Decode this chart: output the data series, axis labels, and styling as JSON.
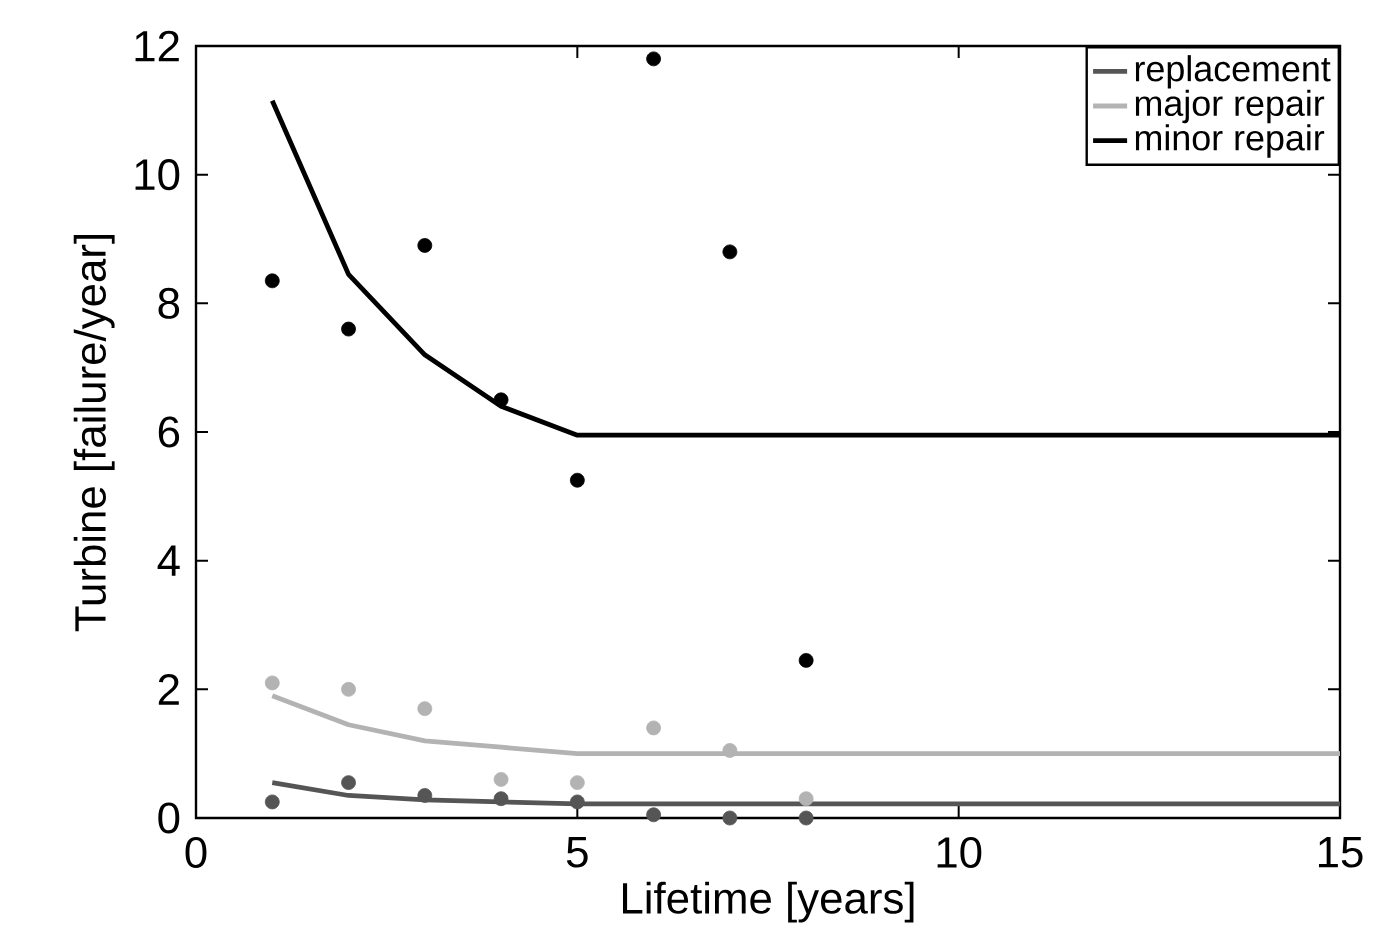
{
  "chart_data": {
    "type": "line",
    "xlabel": "Lifetime [years]",
    "ylabel": "Turbine [failure/year]",
    "xlim": [
      0,
      15
    ],
    "ylim": [
      0,
      12
    ],
    "xticks": [
      0,
      5,
      10,
      15
    ],
    "yticks": [
      0,
      2,
      4,
      6,
      8,
      10,
      12
    ],
    "grid": false,
    "legend": "top right",
    "series": [
      {
        "name": "replacement",
        "color": "#555555",
        "marker": "none",
        "x": [
          1,
          2,
          3,
          4,
          5,
          15
        ],
        "values": [
          0.55,
          0.35,
          0.28,
          0.25,
          0.22,
          0.22
        ]
      },
      {
        "name": "major repair",
        "color": "#b3b3b3",
        "marker": "none",
        "x": [
          1,
          2,
          3,
          4,
          5,
          15
        ],
        "values": [
          1.9,
          1.45,
          1.2,
          1.1,
          1.0,
          1.0
        ]
      },
      {
        "name": "minor repair",
        "color": "#000000",
        "marker": "none",
        "x": [
          1,
          2,
          3,
          4,
          5,
          15
        ],
        "values": [
          11.15,
          8.45,
          7.2,
          6.4,
          5.95,
          5.95
        ]
      },
      {
        "type": "scatter",
        "color": "#555555",
        "marker": "circle",
        "x": [
          1,
          2,
          3,
          4,
          5,
          6,
          7,
          8
        ],
        "values": [
          0.25,
          0.55,
          0.35,
          0.3,
          0.25,
          0.05,
          0.0,
          0.0
        ]
      },
      {
        "type": "scatter",
        "color": "#b3b3b3",
        "marker": "circle",
        "x": [
          1,
          2,
          3,
          4,
          5,
          6,
          7,
          8
        ],
        "values": [
          2.1,
          2.0,
          1.7,
          0.6,
          0.55,
          1.4,
          1.05,
          0.3
        ]
      },
      {
        "type": "scatter",
        "color": "#000000",
        "marker": "circle",
        "x": [
          1,
          2,
          3,
          4,
          5,
          6,
          7,
          8
        ],
        "values": [
          8.35,
          7.6,
          8.9,
          6.5,
          5.25,
          11.8,
          8.8,
          2.45
        ]
      }
    ]
  }
}
